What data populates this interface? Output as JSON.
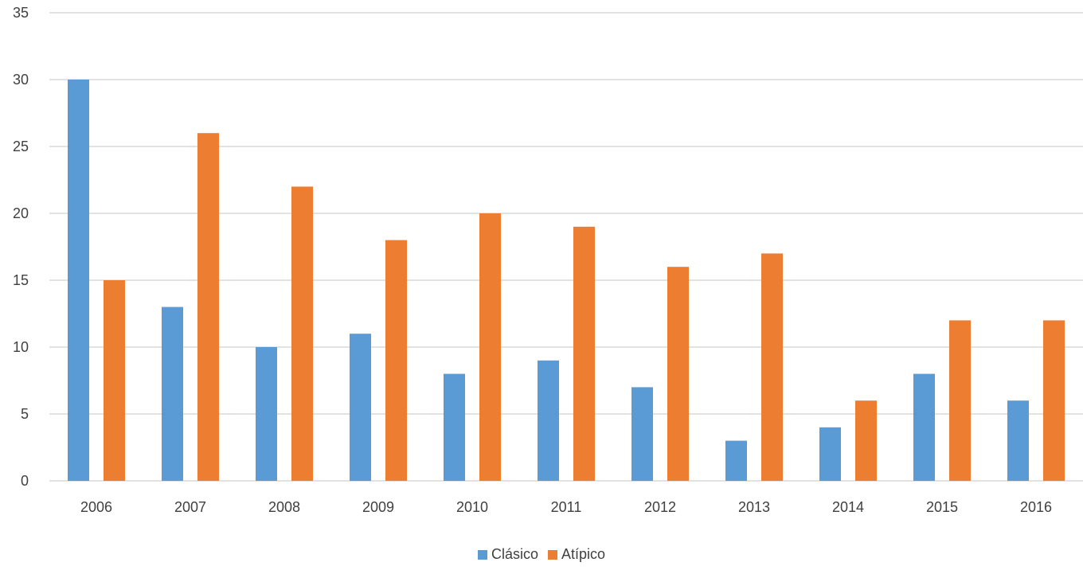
{
  "chart_data": {
    "type": "bar",
    "categories": [
      "2006",
      "2007",
      "2008",
      "2009",
      "2010",
      "2011",
      "2012",
      "2013",
      "2014",
      "2015",
      "2016"
    ],
    "series": [
      {
        "name": "Clásico",
        "color": "#5b9bd5",
        "values": [
          30,
          13,
          10,
          11,
          8,
          9,
          7,
          3,
          4,
          8,
          6
        ]
      },
      {
        "name": "Atípico",
        "color": "#ed7d31",
        "values": [
          15,
          26,
          22,
          18,
          20,
          19,
          16,
          17,
          6,
          12,
          12
        ]
      }
    ],
    "ylim": [
      0,
      35
    ],
    "yticks": [
      "0",
      "5",
      "10",
      "15",
      "20",
      "25",
      "30",
      "35"
    ],
    "grid": true,
    "gridline_color": "#d9d9d9",
    "legend_position": "bottom"
  }
}
